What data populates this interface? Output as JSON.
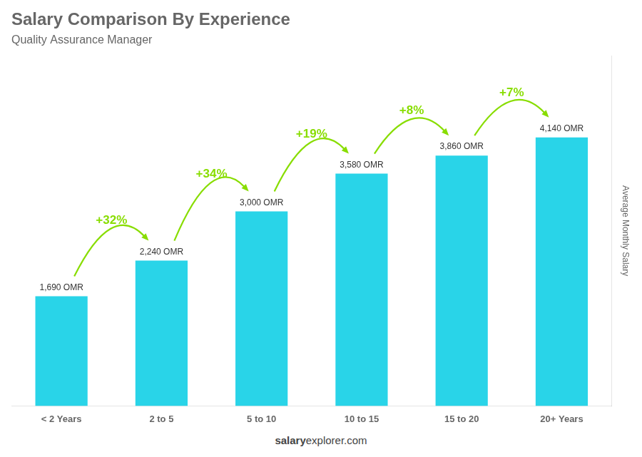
{
  "chart_data": {
    "type": "bar",
    "title": "Salary Comparison By Experience",
    "subtitle": "Quality Assurance Manager",
    "ylabel": "Average Monthly Salary",
    "categories": [
      "< 2 Years",
      "2 to 5",
      "5 to 10",
      "10 to 15",
      "15 to 20",
      "20+ Years"
    ],
    "values": [
      1690,
      2240,
      3000,
      3580,
      3860,
      4140
    ],
    "value_labels": [
      "1,690 OMR",
      "2,240 OMR",
      "3,000 OMR",
      "3,580 OMR",
      "3,860 OMR",
      "4,140 OMR"
    ],
    "data_labels": true,
    "color": "#29d4e8",
    "annotations": [
      {
        "text": "+32%",
        "color": "#88dd00"
      },
      {
        "text": "+34%",
        "color": "#88dd00"
      },
      {
        "text": "+19%",
        "color": "#88dd00"
      },
      {
        "text": "+8%",
        "color": "#88dd00"
      },
      {
        "text": "+7%",
        "color": "#88dd00"
      }
    ],
    "footer": [
      "salary",
      "explorer.com"
    ],
    "ylim": [
      0,
      5400
    ],
    "yticks": [],
    "tick_labels": "x",
    "grid": false
  }
}
